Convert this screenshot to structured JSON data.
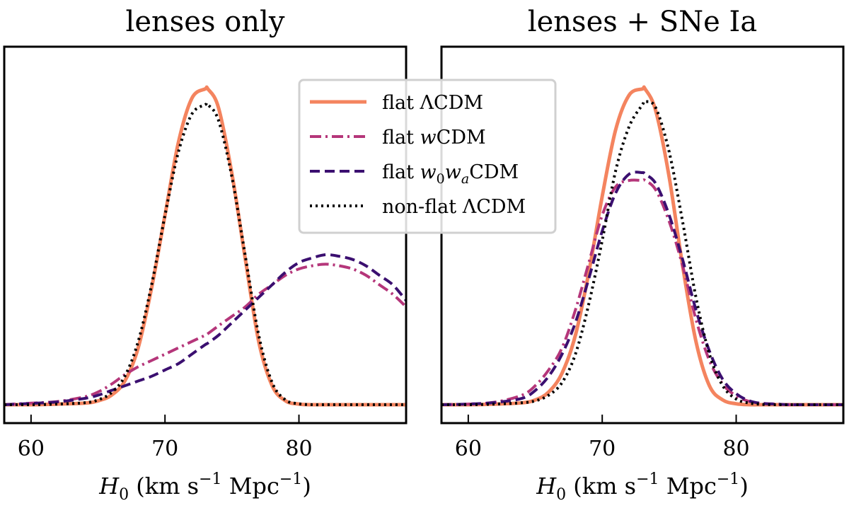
{
  "chart_data": [
    {
      "type": "line",
      "title": "lenses only",
      "xlabel": "H0 (km s−1 Mpc−1)",
      "ylabel": "",
      "xlim": [
        58,
        88
      ],
      "ylim": [
        0,
        1.08
      ],
      "xticks": [
        60,
        70,
        80
      ],
      "x": [
        58,
        60,
        62,
        64,
        65,
        66,
        67,
        68,
        69,
        70,
        71,
        72,
        73,
        73.2,
        74,
        75,
        76,
        77,
        78,
        79,
        80,
        81,
        82,
        83,
        84,
        85,
        86,
        87,
        88
      ],
      "series": [
        {
          "name": "flat ΛCDM",
          "color": "#f4845f",
          "style": "solid",
          "values": [
            0,
            0,
            0.002,
            0.005,
            0.012,
            0.03,
            0.075,
            0.18,
            0.37,
            0.6,
            0.83,
            0.97,
            1.0,
            1.0,
            0.94,
            0.73,
            0.46,
            0.2,
            0.06,
            0.012,
            0.002,
            0,
            0,
            0,
            0,
            0,
            0,
            0,
            0
          ]
        },
        {
          "name": "flat wCDM",
          "color": "#b5367a",
          "style": "dashdot",
          "values": [
            0,
            0.005,
            0.01,
            0.025,
            0.04,
            0.065,
            0.095,
            0.12,
            0.14,
            0.16,
            0.18,
            0.2,
            0.22,
            0.225,
            0.25,
            0.28,
            0.31,
            0.35,
            0.38,
            0.41,
            0.43,
            0.44,
            0.445,
            0.44,
            0.43,
            0.41,
            0.38,
            0.35,
            0.31
          ]
        },
        {
          "name": "flat w0waCDM",
          "color": "#3b0f70",
          "style": "dashed",
          "values": [
            0,
            0.004,
            0.009,
            0.02,
            0.03,
            0.045,
            0.06,
            0.075,
            0.09,
            0.11,
            0.13,
            0.16,
            0.19,
            0.195,
            0.22,
            0.26,
            0.3,
            0.34,
            0.38,
            0.42,
            0.45,
            0.465,
            0.475,
            0.47,
            0.46,
            0.44,
            0.41,
            0.38,
            0.33
          ]
        },
        {
          "name": "non-flat ΛCDM",
          "color": "#000000",
          "style": "dotted",
          "values": [
            0,
            0,
            0.002,
            0.006,
            0.015,
            0.038,
            0.09,
            0.2,
            0.38,
            0.6,
            0.8,
            0.92,
            0.95,
            0.95,
            0.9,
            0.72,
            0.47,
            0.22,
            0.07,
            0.015,
            0.003,
            0,
            0,
            0,
            0,
            0,
            0,
            0,
            0
          ]
        }
      ]
    },
    {
      "type": "line",
      "title": "lenses + SNe Ia",
      "xlabel": "H0 (km s−1 Mpc−1)",
      "ylabel": "",
      "xlim": [
        58,
        88
      ],
      "ylim": [
        0,
        1.08
      ],
      "xticks": [
        60,
        70,
        80
      ],
      "x": [
        58,
        60,
        62,
        64,
        65,
        66,
        67,
        68,
        69,
        70,
        71,
        72,
        73,
        73.2,
        74,
        75,
        76,
        77,
        78,
        79,
        80,
        81,
        82,
        83,
        84,
        85,
        86,
        87,
        88
      ],
      "series": [
        {
          "name": "flat ΛCDM",
          "color": "#f4845f",
          "style": "solid",
          "values": [
            0,
            0,
            0.002,
            0.006,
            0.015,
            0.04,
            0.1,
            0.22,
            0.42,
            0.66,
            0.87,
            0.98,
            1.0,
            1.0,
            0.93,
            0.72,
            0.44,
            0.2,
            0.06,
            0.015,
            0.003,
            0,
            0,
            0,
            0,
            0,
            0,
            0,
            0
          ]
        },
        {
          "name": "flat wCDM",
          "color": "#b5367a",
          "style": "dashdot",
          "values": [
            0,
            0.002,
            0.008,
            0.03,
            0.06,
            0.11,
            0.18,
            0.3,
            0.45,
            0.6,
            0.69,
            0.71,
            0.71,
            0.71,
            0.68,
            0.58,
            0.44,
            0.27,
            0.14,
            0.065,
            0.028,
            0.01,
            0.004,
            0.002,
            0,
            0,
            0,
            0,
            0
          ]
        },
        {
          "name": "flat w0waCDM",
          "color": "#3b0f70",
          "style": "dashed",
          "values": [
            0,
            0.002,
            0.007,
            0.02,
            0.045,
            0.09,
            0.16,
            0.26,
            0.4,
            0.55,
            0.67,
            0.73,
            0.735,
            0.73,
            0.7,
            0.6,
            0.46,
            0.3,
            0.17,
            0.08,
            0.035,
            0.012,
            0.004,
            0.002,
            0,
            0,
            0,
            0,
            0
          ]
        },
        {
          "name": "non-flat ΛCDM",
          "color": "#000000",
          "style": "dotted",
          "values": [
            0,
            0,
            0.002,
            0.006,
            0.012,
            0.03,
            0.07,
            0.16,
            0.32,
            0.52,
            0.74,
            0.88,
            0.95,
            0.96,
            0.94,
            0.8,
            0.58,
            0.34,
            0.16,
            0.06,
            0.018,
            0.005,
            0.001,
            0,
            0,
            0,
            0,
            0,
            0
          ]
        }
      ]
    }
  ],
  "legend": {
    "placement": "top-center",
    "entries": [
      {
        "prefix": "flat ",
        "symbol": "Λ",
        "suffix": "CDM"
      },
      {
        "prefix": "flat ",
        "symbol": "w",
        "suffix": "CDM"
      },
      {
        "prefix": "flat ",
        "w1": "w",
        "sub1": "0",
        "w2": "w",
        "sub2": "a",
        "suffix": "CDM"
      },
      {
        "prefix": "non-flat ",
        "symbol": "Λ",
        "suffix": "CDM"
      }
    ]
  },
  "axis_label": {
    "var": "H",
    "var_sub": "0",
    "open": " (km s",
    "exp1": "−1",
    "mid": " Mpc",
    "exp2": "−1",
    "close": ")"
  }
}
